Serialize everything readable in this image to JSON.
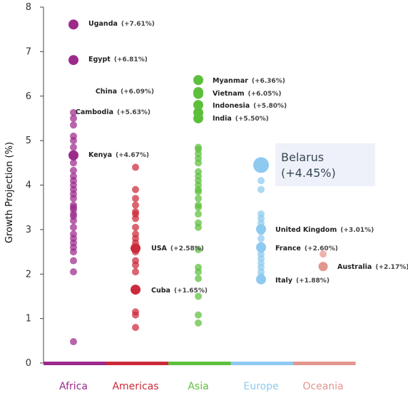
{
  "chart_data": {
    "type": "scatter",
    "ylabel": "Growth Projection (%)",
    "ylim": [
      0,
      8
    ],
    "yticks": [
      "0",
      "1",
      "2",
      "3",
      "4",
      "5",
      "6",
      "7",
      "8"
    ],
    "categories": [
      "Africa",
      "Americas",
      "Asia",
      "Europe",
      "Oceania"
    ],
    "colors": {
      "Africa": "#9c2a8a",
      "Americas": "#cc2a3a",
      "Asia": "#5dbf3c",
      "Europe": "#8ecaf0",
      "Oceania": "#e3958e"
    },
    "series": [
      {
        "name": "Africa",
        "values": [
          7.61,
          6.81,
          5.63,
          5.5,
          5.35,
          5.1,
          5.0,
          4.85,
          4.67,
          4.63,
          4.5,
          4.33,
          4.2,
          4.1,
          4.0,
          3.9,
          3.8,
          3.7,
          3.55,
          3.5,
          3.45,
          3.35,
          3.3,
          3.2,
          3.05,
          2.9,
          2.8,
          2.7,
          2.6,
          2.5,
          2.3,
          2.05,
          0.48
        ]
      },
      {
        "name": "Americas",
        "values": [
          4.4,
          3.9,
          3.7,
          3.55,
          3.4,
          3.35,
          3.25,
          3.05,
          2.9,
          2.8,
          2.7,
          2.6,
          2.58,
          2.5,
          2.3,
          2.2,
          2.05,
          1.65,
          1.15,
          1.08,
          0.8
        ]
      },
      {
        "name": "Asia",
        "values": [
          6.36,
          6.09,
          6.05,
          5.8,
          5.63,
          5.5,
          4.85,
          4.8,
          4.7,
          4.6,
          4.5,
          4.3,
          4.2,
          4.1,
          4.0,
          3.9,
          3.85,
          3.7,
          3.55,
          3.5,
          3.35,
          3.15,
          3.05,
          2.55,
          2.15,
          2.05,
          1.9,
          1.5,
          1.08,
          0.9
        ]
      },
      {
        "name": "Europe",
        "values": [
          4.45,
          4.1,
          3.9,
          3.35,
          3.25,
          3.15,
          3.05,
          3.01,
          2.95,
          2.8,
          2.65,
          2.6,
          2.55,
          2.45,
          2.35,
          2.25,
          2.15,
          2.05,
          1.95,
          1.88
        ]
      },
      {
        "name": "Oceania",
        "values": [
          2.45,
          2.17
        ]
      }
    ],
    "annotations": [
      {
        "country": "Uganda",
        "value_label": "(+7.61%)",
        "region": "Africa",
        "value": 7.61
      },
      {
        "country": "Egypt",
        "value_label": "(+6.81%)",
        "region": "Africa",
        "value": 6.81
      },
      {
        "country": "Kenya",
        "value_label": "(+4.67%)",
        "region": "Africa",
        "value": 4.67
      },
      {
        "country": "USA",
        "value_label": "(+2.58%)",
        "region": "Americas",
        "value": 2.58
      },
      {
        "country": "Cuba",
        "value_label": "(+1.65%)",
        "region": "Americas",
        "value": 1.65
      },
      {
        "country": "Myanmar",
        "value_label": "(+6.36%)",
        "region": "Asia",
        "value": 6.36
      },
      {
        "country": "China",
        "value_label": "(+6.09%)",
        "region": "Asia",
        "value": 6.09
      },
      {
        "country": "Vietnam",
        "value_label": "(+6.05%)",
        "region": "Asia",
        "value": 6.05
      },
      {
        "country": "Indonesia",
        "value_label": "(+5.80%)",
        "region": "Asia",
        "value": 5.8
      },
      {
        "country": "Cambodia",
        "value_label": "(+5.63%)",
        "region": "Asia",
        "value": 5.63
      },
      {
        "country": "India",
        "value_label": "(+5.50%)",
        "region": "Asia",
        "value": 5.5
      },
      {
        "country": "United Kingdom",
        "value_label": "(+3.01%)",
        "region": "Europe",
        "value": 3.01
      },
      {
        "country": "France",
        "value_label": "(+2.60%)",
        "region": "Europe",
        "value": 2.6
      },
      {
        "country": "Italy",
        "value_label": "(+1.88%)",
        "region": "Europe",
        "value": 1.88
      },
      {
        "country": "Australia",
        "value_label": "(+2.17%)",
        "region": "Oceania",
        "value": 2.17
      }
    ],
    "tooltip": {
      "country": "Belarus",
      "value_label": "(+4.45%)",
      "region": "Europe",
      "value": 4.45
    }
  }
}
